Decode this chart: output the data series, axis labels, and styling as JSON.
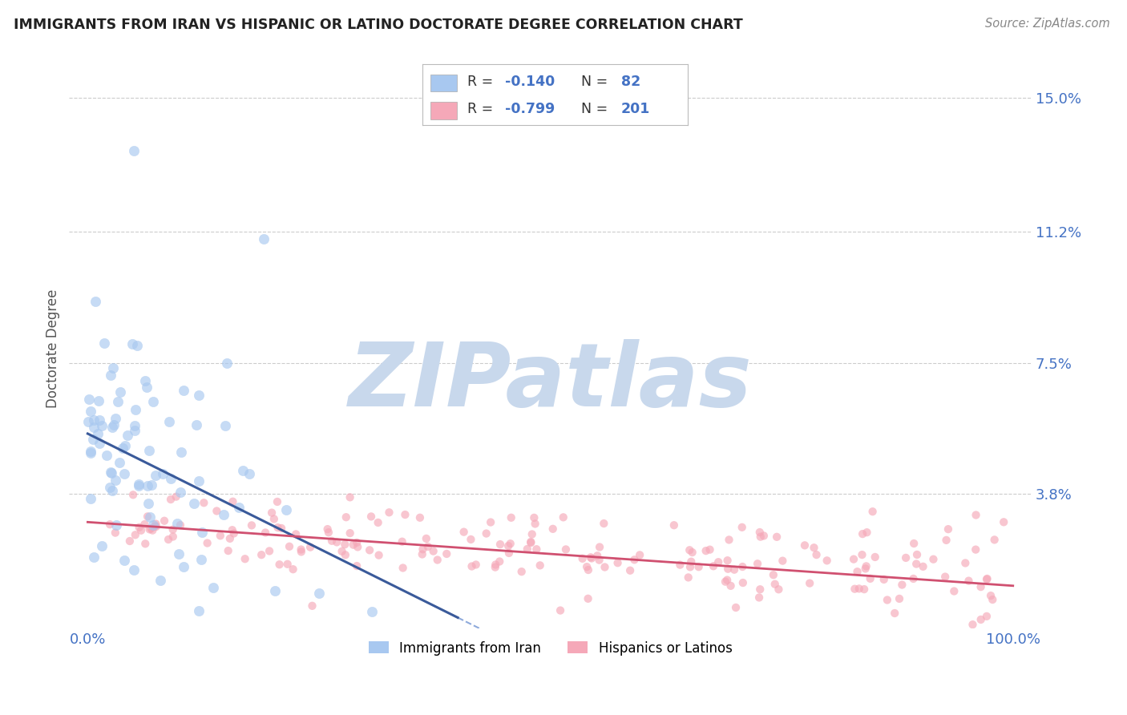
{
  "title": "IMMIGRANTS FROM IRAN VS HISPANIC OR LATINO DOCTORATE DEGREE CORRELATION CHART",
  "source_text": "Source: ZipAtlas.com",
  "ylabel": "Doctorate Degree",
  "xlim": [
    -2,
    102
  ],
  "ylim": [
    0.0,
    15.8
  ],
  "yticks": [
    3.8,
    7.5,
    11.2,
    15.0
  ],
  "ytick_labels": [
    "3.8%",
    "7.5%",
    "11.2%",
    "15.0%"
  ],
  "xtick_labels": [
    "0.0%",
    "100.0%"
  ],
  "legend_r1": "-0.140",
  "legend_n1": "82",
  "legend_r2": "-0.799",
  "legend_n2": "201",
  "legend_label1": "Immigrants from Iran",
  "legend_label2": "Hispanics or Latinos",
  "color_blue": "#A8C8F0",
  "color_pink": "#F5A8B8",
  "color_blue_line": "#3A5A9A",
  "color_pink_line": "#D05070",
  "color_blue_text": "#4472C4",
  "color_title": "#222222",
  "watermark_text": "ZIPatlas",
  "watermark_color": "#C8D8EC",
  "background_color": "#FFFFFF",
  "blue_n": 82,
  "pink_n": 201,
  "blue_R": -0.14,
  "pink_R": -0.799
}
